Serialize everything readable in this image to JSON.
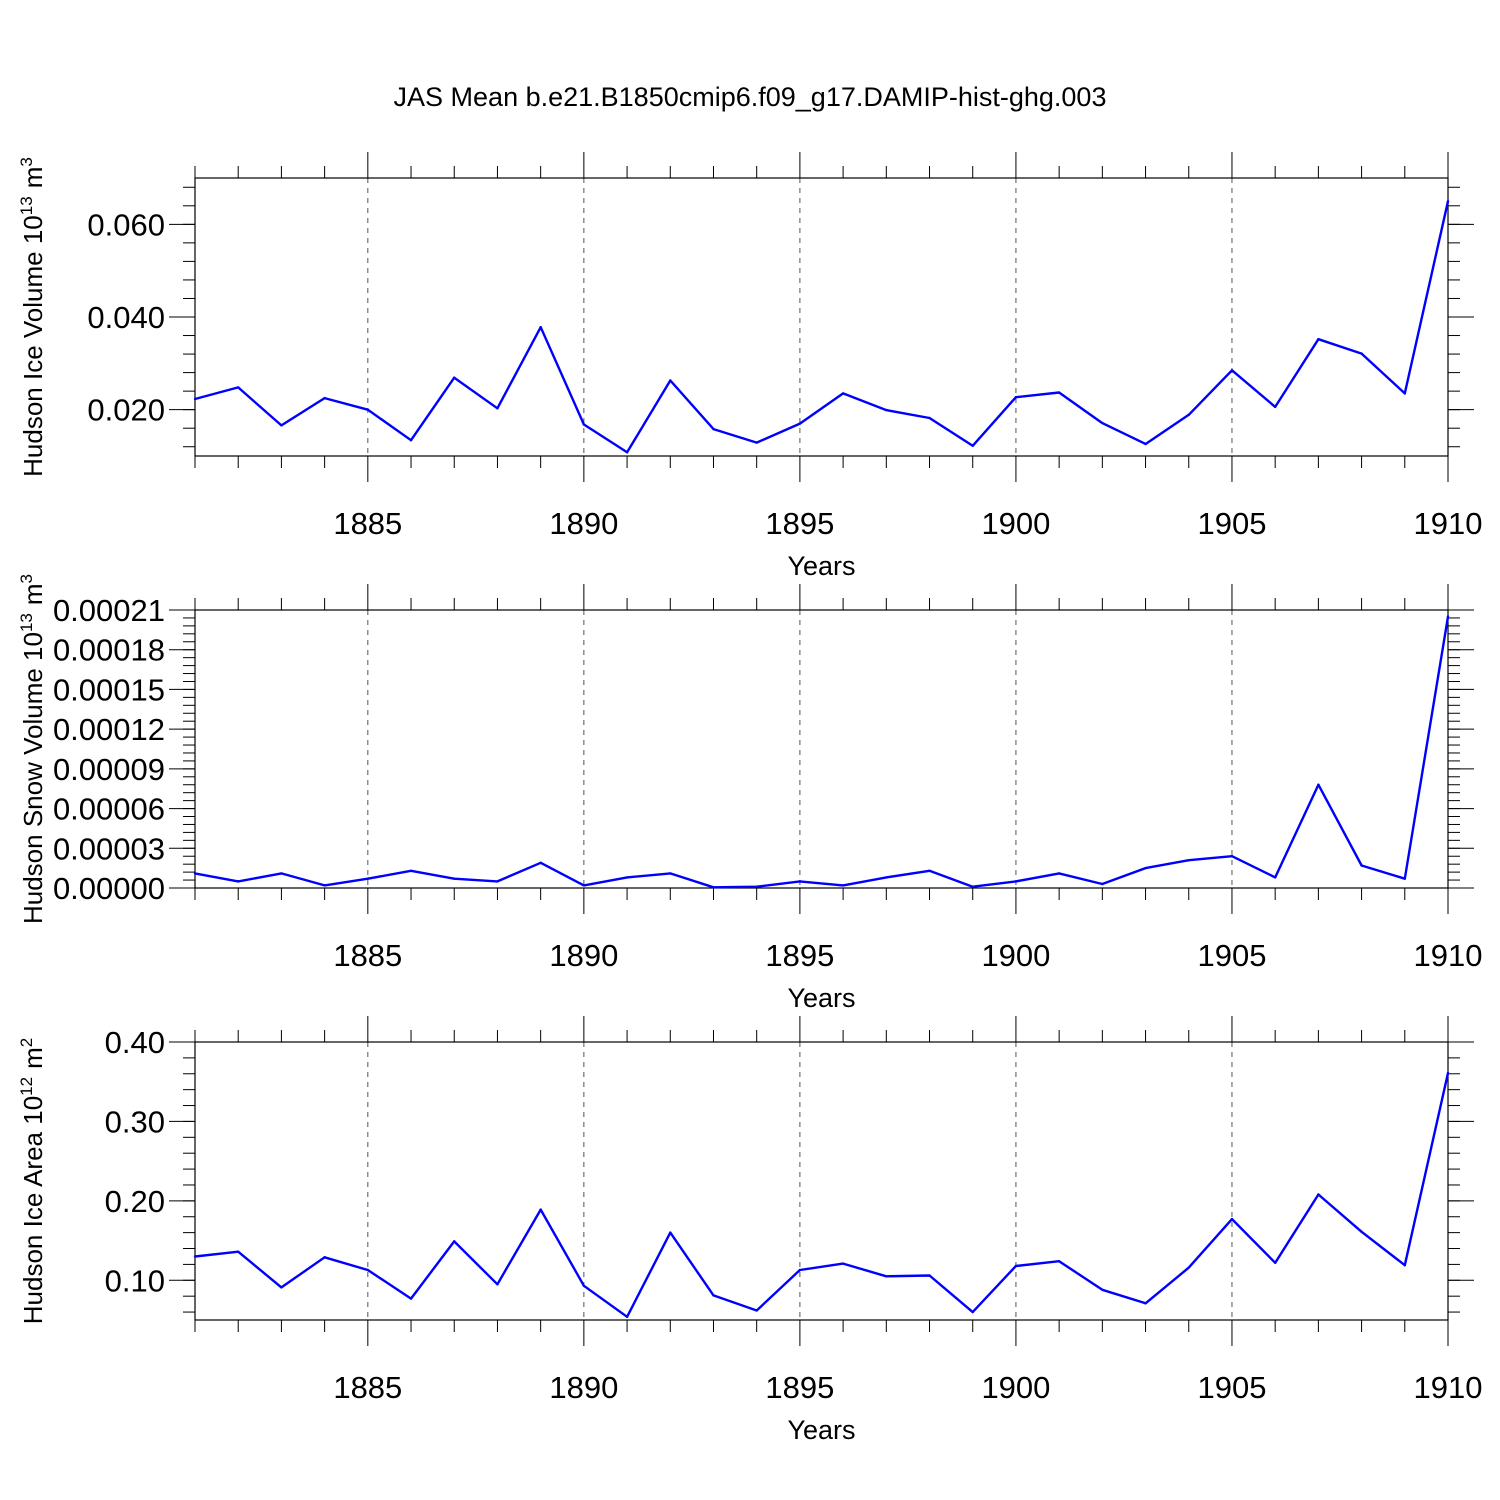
{
  "title": "JAS Mean b.e21.B1850cmip6.f09_g17.DAMIP-hist-ghg.003",
  "colors": {
    "series": "#0000ff",
    "axis": "#000000",
    "grid": "#555555"
  },
  "chart_data": [
    {
      "type": "line",
      "name": "ice-volume",
      "ylabel": "Hudson Ice Volume 10",
      "ylabel_sup": "13",
      "ylabel_unit": "m",
      "ylabel_unit_sup": "3",
      "xlabel": "Years",
      "xlim": [
        1881,
        1910
      ],
      "ylim": [
        0.01,
        0.07
      ],
      "xticks": [
        "1885",
        "1890",
        "1895",
        "1900",
        "1905",
        "1910"
      ],
      "yticks": [
        {
          "label": "0.020",
          "value": 0.02
        },
        {
          "label": "0.040",
          "value": 0.04
        },
        {
          "label": "0.060",
          "value": 0.06
        }
      ],
      "x": [
        1881,
        1882,
        1883,
        1884,
        1885,
        1886,
        1887,
        1888,
        1889,
        1890,
        1891,
        1892,
        1893,
        1894,
        1895,
        1896,
        1897,
        1898,
        1899,
        1900,
        1901,
        1902,
        1903,
        1904,
        1905,
        1906,
        1907,
        1908,
        1909,
        1910
      ],
      "y": [
        0.0223,
        0.0248,
        0.0166,
        0.0225,
        0.02,
        0.0134,
        0.0269,
        0.0203,
        0.0378,
        0.0168,
        0.0108,
        0.0263,
        0.0158,
        0.0129,
        0.017,
        0.0235,
        0.0199,
        0.0182,
        0.0122,
        0.0227,
        0.0237,
        0.0171,
        0.0126,
        0.0189,
        0.0285,
        0.0206,
        0.0352,
        0.0321,
        0.0235,
        0.065
      ]
    },
    {
      "type": "line",
      "name": "snow-volume",
      "ylabel": "Hudson Snow Volume 10",
      "ylabel_sup": "13",
      "ylabel_unit": "m",
      "ylabel_unit_sup": "3",
      "xlabel": "Years",
      "xlim": [
        1881,
        1910
      ],
      "ylim": [
        0.0,
        0.00021
      ],
      "xticks": [
        "1885",
        "1890",
        "1895",
        "1900",
        "1905",
        "1910"
      ],
      "yticks": [
        {
          "label": "0.00000",
          "value": 0.0
        },
        {
          "label": "0.00003",
          "value": 3e-05
        },
        {
          "label": "0.00006",
          "value": 6e-05
        },
        {
          "label": "0.00009",
          "value": 9e-05
        },
        {
          "label": "0.00012",
          "value": 0.00012
        },
        {
          "label": "0.00015",
          "value": 0.00015
        },
        {
          "label": "0.00018",
          "value": 0.00018
        },
        {
          "label": "0.00021",
          "value": 0.00021
        }
      ],
      "x": [
        1881,
        1882,
        1883,
        1884,
        1885,
        1886,
        1887,
        1888,
        1889,
        1890,
        1891,
        1892,
        1893,
        1894,
        1895,
        1896,
        1897,
        1898,
        1899,
        1900,
        1901,
        1902,
        1903,
        1904,
        1905,
        1906,
        1907,
        1908,
        1909,
        1910
      ],
      "y": [
        1.1e-05,
        5e-06,
        1.1e-05,
        2e-06,
        7e-06,
        1.3e-05,
        7e-06,
        5e-06,
        1.9e-05,
        2e-06,
        8e-06,
        1.1e-05,
        5e-07,
        1e-06,
        5e-06,
        2e-06,
        8e-06,
        1.3e-05,
        1e-06,
        5e-06,
        1.1e-05,
        3e-06,
        1.5e-05,
        2.1e-05,
        2.4e-05,
        8e-06,
        7.8e-05,
        1.7e-05,
        7e-06,
        0.000205
      ]
    },
    {
      "type": "line",
      "name": "ice-area",
      "ylabel": "Hudson Ice Area 10",
      "ylabel_sup": "12",
      "ylabel_unit": "m",
      "ylabel_unit_sup": "2",
      "xlabel": "Years",
      "xlim": [
        1881,
        1910
      ],
      "ylim": [
        0.05,
        0.4
      ],
      "xticks": [
        "1885",
        "1890",
        "1895",
        "1900",
        "1905",
        "1910"
      ],
      "yticks": [
        {
          "label": "0.10",
          "value": 0.1
        },
        {
          "label": "0.20",
          "value": 0.2
        },
        {
          "label": "0.30",
          "value": 0.3
        },
        {
          "label": "0.40",
          "value": 0.4
        }
      ],
      "x": [
        1881,
        1882,
        1883,
        1884,
        1885,
        1886,
        1887,
        1888,
        1889,
        1890,
        1891,
        1892,
        1893,
        1894,
        1895,
        1896,
        1897,
        1898,
        1899,
        1900,
        1901,
        1902,
        1903,
        1904,
        1905,
        1906,
        1907,
        1908,
        1909,
        1910
      ],
      "y": [
        0.13,
        0.136,
        0.091,
        0.129,
        0.113,
        0.077,
        0.149,
        0.095,
        0.189,
        0.093,
        0.054,
        0.16,
        0.081,
        0.062,
        0.113,
        0.121,
        0.105,
        0.106,
        0.06,
        0.118,
        0.124,
        0.088,
        0.071,
        0.116,
        0.177,
        0.122,
        0.208,
        0.161,
        0.119,
        0.361
      ]
    }
  ]
}
